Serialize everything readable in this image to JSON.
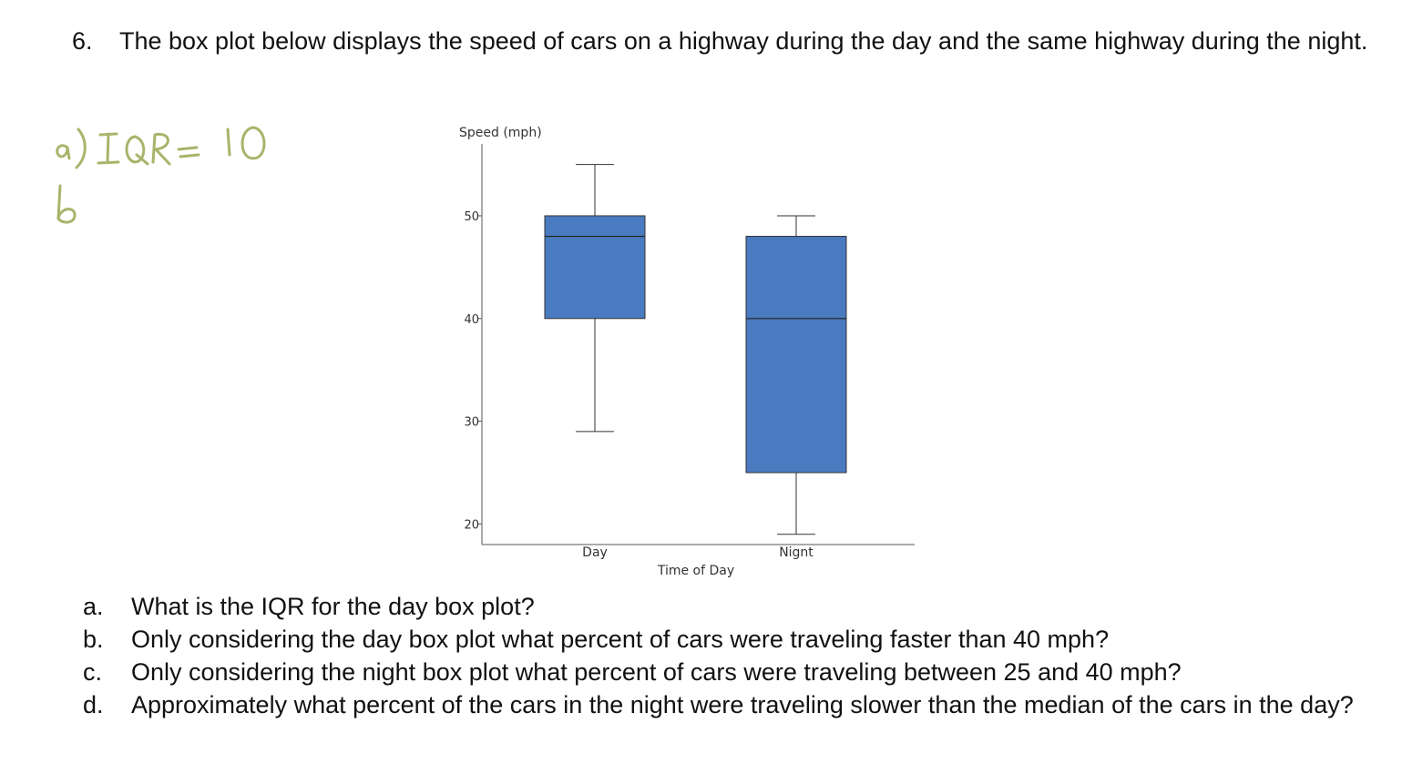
{
  "question": {
    "number": "6.",
    "text": "The box plot below displays the speed of cars on a highway during the day and the same highway during the night."
  },
  "handwriting": {
    "line1": "a) IQR = 10",
    "line2": "b",
    "color": "#a8b46a"
  },
  "chart_data": {
    "type": "box",
    "ylabel": "Speed (mph)",
    "xlabel": "Time of Day",
    "ylim": [
      18,
      57
    ],
    "yticks": [
      20,
      30,
      40,
      50
    ],
    "grid": false,
    "legend": "none",
    "box_color": "#4a7abf",
    "categories": [
      "Day",
      "Nignt"
    ],
    "boxes": [
      {
        "label": "Day",
        "min": 29,
        "q1": 40,
        "median": 48,
        "q3": 50,
        "max": 55
      },
      {
        "label": "Nignt",
        "min": 19,
        "q1": 25,
        "median": 40,
        "q3": 48,
        "max": 50
      }
    ]
  },
  "subquestions": [
    {
      "letter": "a.",
      "text": "What is the IQR for the day box plot?"
    },
    {
      "letter": "b.",
      "text": "Only considering the day box plot what percent of cars were traveling faster than 40 mph?"
    },
    {
      "letter": "c.",
      "text": "Only considering the night box plot what percent of cars were traveling between 25 and 40 mph?"
    },
    {
      "letter": "d.",
      "text": "Approximately what percent of the cars in the night were traveling slower than the median of the cars in the day?"
    }
  ]
}
